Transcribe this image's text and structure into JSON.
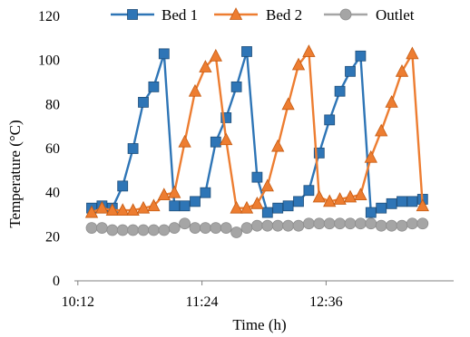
{
  "chart_data": {
    "type": "line",
    "title": "",
    "xlabel": "Time (h)",
    "ylabel": "Temperature (°C)",
    "x_tick_labels": [
      "10:12",
      "11:24",
      "12:36"
    ],
    "y_ticks": [
      0,
      20,
      40,
      60,
      80,
      100,
      120
    ],
    "ylim": [
      0,
      120
    ],
    "legend_position": "top",
    "grid": false,
    "series": [
      {
        "name": "Bed 1",
        "color": "#2E75B6",
        "marker": "square",
        "points": [
          [
            "10:20",
            33
          ],
          [
            "10:26",
            34
          ],
          [
            "10:32",
            33
          ],
          [
            "10:38",
            43
          ],
          [
            "10:44",
            60
          ],
          [
            "10:50",
            81
          ],
          [
            "10:56",
            88
          ],
          [
            "11:02",
            103
          ],
          [
            "11:08",
            34
          ],
          [
            "11:14",
            34
          ],
          [
            "11:20",
            36
          ],
          [
            "11:26",
            40
          ],
          [
            "11:32",
            63
          ],
          [
            "11:38",
            74
          ],
          [
            "11:44",
            88
          ],
          [
            "11:50",
            104
          ],
          [
            "11:56",
            47
          ],
          [
            "12:02",
            31
          ],
          [
            "12:08",
            33
          ],
          [
            "12:14",
            34
          ],
          [
            "12:20",
            36
          ],
          [
            "12:26",
            41
          ],
          [
            "12:32",
            58
          ],
          [
            "12:38",
            73
          ],
          [
            "12:44",
            86
          ],
          [
            "12:50",
            95
          ],
          [
            "12:56",
            102
          ],
          [
            "13:02",
            31
          ],
          [
            "13:08",
            33
          ],
          [
            "13:14",
            35
          ],
          [
            "13:20",
            36
          ],
          [
            "13:26",
            36
          ],
          [
            "13:32",
            37
          ]
        ]
      },
      {
        "name": "Bed 2",
        "color": "#ED7D31",
        "marker": "triangle",
        "points": [
          [
            "10:20",
            31
          ],
          [
            "10:26",
            33
          ],
          [
            "10:32",
            32
          ],
          [
            "10:38",
            32
          ],
          [
            "10:44",
            32
          ],
          [
            "10:50",
            33
          ],
          [
            "10:56",
            34
          ],
          [
            "11:02",
            39
          ],
          [
            "11:08",
            40
          ],
          [
            "11:14",
            63
          ],
          [
            "11:20",
            86
          ],
          [
            "11:26",
            97
          ],
          [
            "11:32",
            102
          ],
          [
            "11:38",
            64
          ],
          [
            "11:44",
            33
          ],
          [
            "11:50",
            33
          ],
          [
            "11:56",
            35
          ],
          [
            "12:02",
            43
          ],
          [
            "12:08",
            61
          ],
          [
            "12:14",
            80
          ],
          [
            "12:20",
            98
          ],
          [
            "12:26",
            104
          ],
          [
            "12:32",
            38
          ],
          [
            "12:38",
            36
          ],
          [
            "12:44",
            37
          ],
          [
            "12:50",
            38
          ],
          [
            "12:56",
            39
          ],
          [
            "13:02",
            56
          ],
          [
            "13:08",
            68
          ],
          [
            "13:14",
            81
          ],
          [
            "13:20",
            95
          ],
          [
            "13:26",
            103
          ],
          [
            "13:32",
            34
          ]
        ]
      },
      {
        "name": "Outlet",
        "color": "#A5A5A5",
        "marker": "circle",
        "points": [
          [
            "10:20",
            24
          ],
          [
            "10:26",
            24
          ],
          [
            "10:32",
            23
          ],
          [
            "10:38",
            23
          ],
          [
            "10:44",
            23
          ],
          [
            "10:50",
            23
          ],
          [
            "10:56",
            23
          ],
          [
            "11:02",
            23
          ],
          [
            "11:08",
            24
          ],
          [
            "11:14",
            26
          ],
          [
            "11:20",
            24
          ],
          [
            "11:26",
            24
          ],
          [
            "11:32",
            24
          ],
          [
            "11:38",
            24
          ],
          [
            "11:44",
            22
          ],
          [
            "11:50",
            24
          ],
          [
            "11:56",
            25
          ],
          [
            "12:02",
            25
          ],
          [
            "12:08",
            25
          ],
          [
            "12:14",
            25
          ],
          [
            "12:20",
            25
          ],
          [
            "12:26",
            26
          ],
          [
            "12:32",
            26
          ],
          [
            "12:38",
            26
          ],
          [
            "12:44",
            26
          ],
          [
            "12:50",
            26
          ],
          [
            "12:56",
            26
          ],
          [
            "13:02",
            26
          ],
          [
            "13:08",
            25
          ],
          [
            "13:14",
            25
          ],
          [
            "13:20",
            25
          ],
          [
            "13:26",
            26
          ],
          [
            "13:32",
            26
          ]
        ]
      }
    ]
  }
}
